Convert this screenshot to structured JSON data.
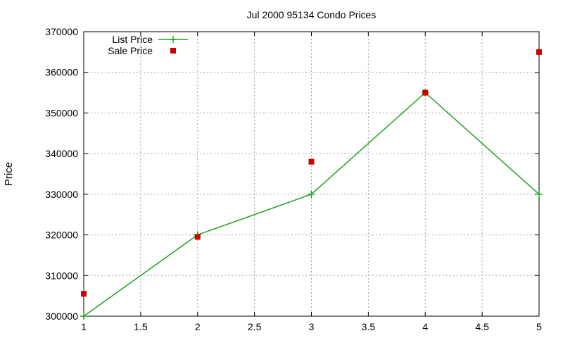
{
  "chart_data": {
    "type": "line",
    "title": "Jul 2000 95134 Condo Prices",
    "xlabel": "",
    "ylabel": "Price",
    "xlim": [
      1,
      5
    ],
    "ylim": [
      300000,
      370000
    ],
    "x_ticks": [
      "1",
      "1.5",
      "2",
      "2.5",
      "3",
      "3.5",
      "4",
      "4.5",
      "5"
    ],
    "y_ticks": [
      "300000",
      "310000",
      "320000",
      "330000",
      "340000",
      "350000",
      "360000",
      "370000"
    ],
    "grid": true,
    "legend_position": "top-left",
    "series": [
      {
        "name": "List Price",
        "style": "linespoints",
        "marker": "plus",
        "color": "#22a022",
        "points": [
          {
            "x": 1,
            "y": 300000
          },
          {
            "x": 2,
            "y": 320000
          },
          {
            "x": 3,
            "y": 330000
          },
          {
            "x": 4,
            "y": 355000
          },
          {
            "x": 5,
            "y": 330000
          }
        ]
      },
      {
        "name": "Sale Price",
        "style": "points",
        "marker": "square",
        "color": "#cc0000",
        "points": [
          {
            "x": 1,
            "y": 305500
          },
          {
            "x": 2,
            "y": 319500
          },
          {
            "x": 3,
            "y": 338000
          },
          {
            "x": 4,
            "y": 355000
          },
          {
            "x": 5,
            "y": 365000
          }
        ]
      }
    ]
  }
}
